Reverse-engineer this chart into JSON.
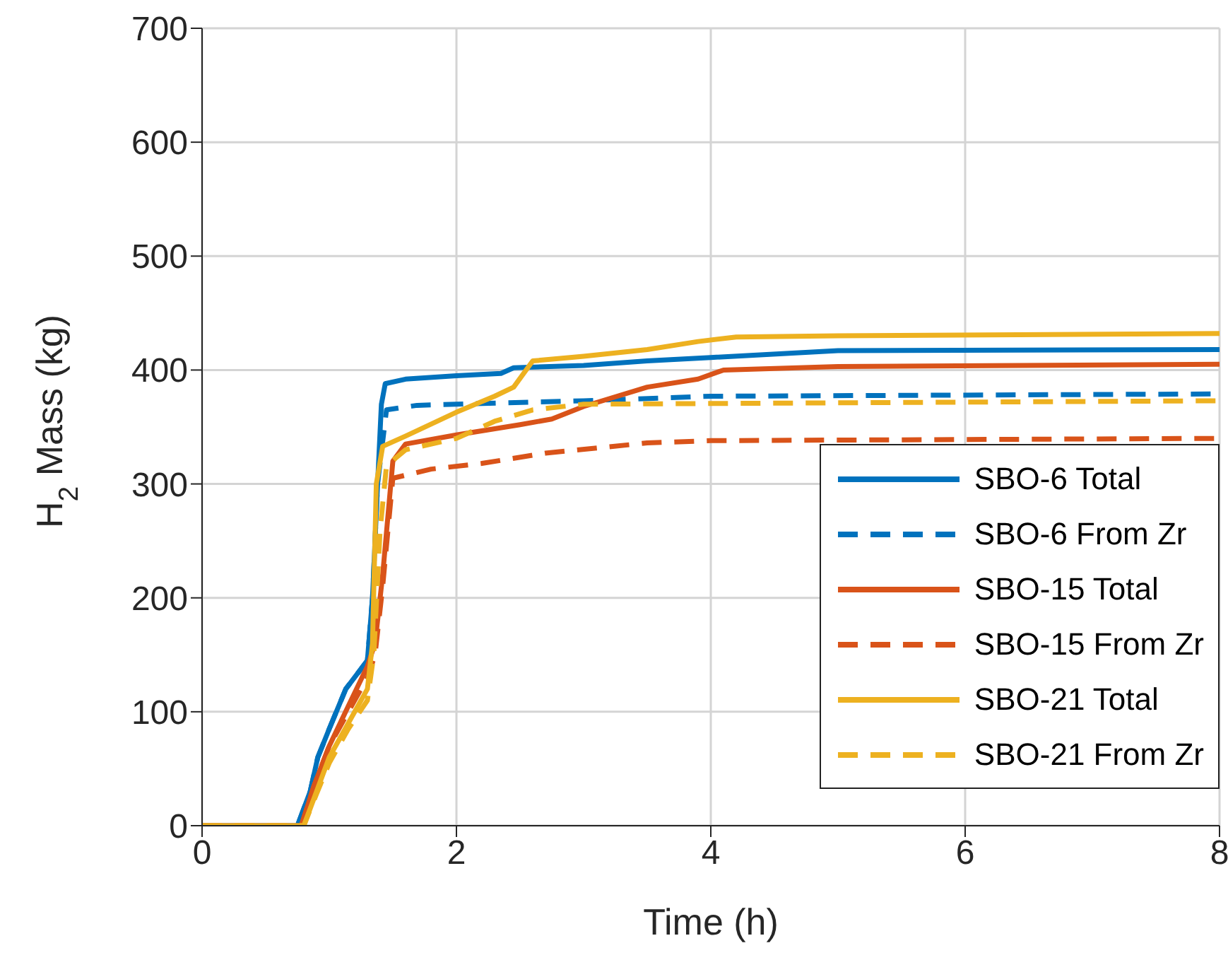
{
  "chart_data": {
    "type": "line",
    "xlabel": "Time (h)",
    "ylabel": "H$_{2}$ Mass (kg)",
    "xlim": [
      0,
      8
    ],
    "xticks": [
      0,
      2,
      4,
      6,
      8
    ],
    "ylim": [
      0,
      700
    ],
    "yticks": [
      0,
      100,
      200,
      300,
      400,
      500,
      600,
      700
    ],
    "grid": true,
    "legend": "bottom right",
    "series": [
      {
        "name": "SBO-6 Total",
        "color": "#0072bd",
        "line_style": "solid",
        "x": [
          0,
          0.75,
          0.85,
          0.91,
          1.0,
          1.13,
          1.3,
          1.34,
          1.38,
          1.41,
          1.44,
          1.6,
          2.0,
          2.35,
          2.45,
          3.0,
          3.5,
          4.0,
          5.0,
          8.0
        ],
        "values": [
          0,
          0,
          30,
          60,
          85,
          120,
          145,
          200,
          300,
          370,
          388,
          392,
          395,
          397,
          402,
          404,
          408,
          411,
          417,
          418
        ]
      },
      {
        "name": "SBO-6 From Zr",
        "color": "#0072bd",
        "line_style": "dashed",
        "x": [
          0,
          0.75,
          0.85,
          0.91,
          1.0,
          1.13,
          1.3,
          1.34,
          1.38,
          1.45,
          1.69,
          3.0,
          4.0,
          8.0
        ],
        "values": [
          0,
          0,
          30,
          60,
          85,
          120,
          145,
          200,
          300,
          365,
          369,
          373,
          377,
          379
        ]
      },
      {
        "name": "SBO-15 Total",
        "color": "#d95319",
        "line_style": "solid",
        "x": [
          0,
          0.78,
          0.88,
          1.0,
          1.15,
          1.3,
          1.36,
          1.42,
          1.5,
          1.6,
          2.0,
          2.5,
          2.75,
          3.0,
          3.5,
          3.9,
          4.1,
          5.0,
          8.0
        ],
        "values": [
          0,
          0,
          35,
          70,
          105,
          140,
          160,
          220,
          320,
          335,
          343,
          352,
          357,
          368,
          385,
          392,
          400,
          403,
          405
        ]
      },
      {
        "name": "SBO-15 From Zr",
        "color": "#d95319",
        "line_style": "dashed",
        "x": [
          0,
          0.78,
          0.88,
          1.0,
          1.15,
          1.3,
          1.36,
          1.42,
          1.5,
          1.8,
          2.2,
          2.7,
          3.5,
          4.0,
          8.0
        ],
        "values": [
          0,
          0,
          35,
          70,
          100,
          130,
          150,
          210,
          305,
          313,
          318,
          327,
          336,
          338,
          340
        ]
      },
      {
        "name": "SBO-21 Total",
        "color": "#edb120",
        "line_style": "solid",
        "x": [
          0,
          0.8,
          0.9,
          1.0,
          1.15,
          1.3,
          1.34,
          1.37,
          1.42,
          1.6,
          2.0,
          2.3,
          2.45,
          2.6,
          3.0,
          3.5,
          3.9,
          4.2,
          5.0,
          8.0
        ],
        "values": [
          0,
          0,
          30,
          60,
          90,
          120,
          160,
          300,
          333,
          342,
          363,
          377,
          385,
          408,
          412,
          418,
          425,
          429,
          430,
          432
        ]
      },
      {
        "name": "SBO-21 From Zr",
        "color": "#edb120",
        "line_style": "dashed",
        "x": [
          0,
          0.8,
          0.9,
          1.0,
          1.15,
          1.3,
          1.35,
          1.4,
          1.45,
          1.6,
          2.0,
          2.3,
          2.6,
          3.0,
          8.0
        ],
        "values": [
          0,
          0,
          28,
          55,
          85,
          110,
          150,
          260,
          316,
          330,
          340,
          355,
          365,
          370,
          373
        ]
      }
    ]
  }
}
